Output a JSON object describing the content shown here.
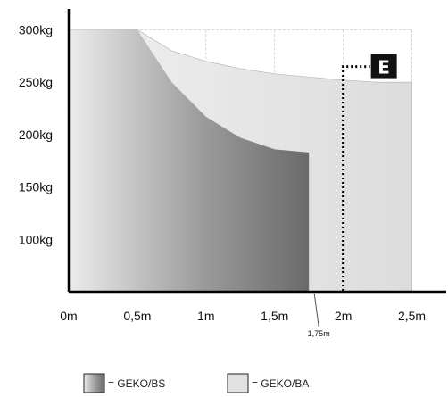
{
  "chart_data": {
    "type": "area",
    "xlabel": "",
    "ylabel": "",
    "x_ticks": [
      "0m",
      "0,5m",
      "1m",
      "1,5m",
      "2m",
      "2,5m"
    ],
    "x_tick_values": [
      0,
      0.5,
      1,
      1.5,
      2,
      2.5
    ],
    "y_ticks": [
      "100kg",
      "150kg",
      "200kg",
      "250kg",
      "300kg"
    ],
    "y_tick_values": [
      100,
      150,
      200,
      250,
      300
    ],
    "xlim": [
      0,
      2.75
    ],
    "ylim": [
      50,
      320
    ],
    "grid": true,
    "series": [
      {
        "name": "GEKO/BA",
        "color": "#e2e2e2",
        "x": [
          0,
          0.5,
          0.75,
          1,
          1.25,
          1.5,
          1.75,
          2,
          2.25,
          2.5
        ],
        "y": [
          300,
          300,
          280,
          270,
          263,
          258,
          255,
          252,
          250,
          250
        ]
      },
      {
        "name": "GEKO/BS",
        "color": "#7a7a7a",
        "x": [
          0,
          0.5,
          0.75,
          1,
          1.25,
          1.5,
          1.75
        ],
        "y": [
          300,
          300,
          250,
          217,
          197,
          186,
          183
        ]
      }
    ],
    "annotations": [
      {
        "text": "1,75m",
        "x": 1.75
      },
      {
        "text": "E",
        "x": 2,
        "y": 265
      }
    ],
    "legend": {
      "placement": "bottom-center",
      "entries": [
        {
          "label": "= GEKO/BS",
          "series": "GEKO/BS"
        },
        {
          "label": "= GEKO/BA",
          "series": "GEKO/BA"
        }
      ]
    }
  }
}
